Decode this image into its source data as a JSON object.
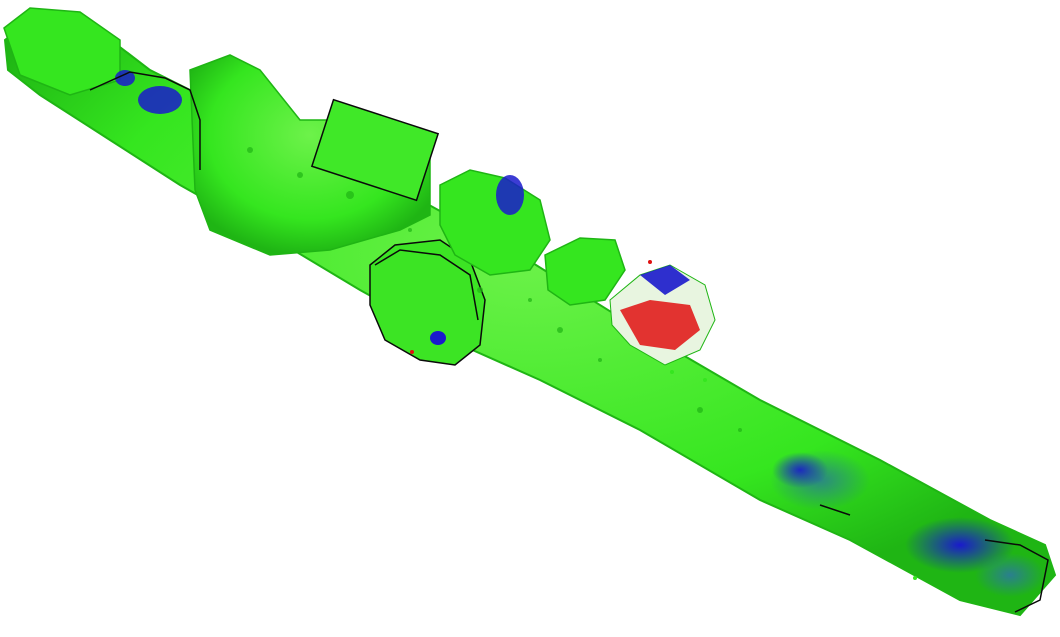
{
  "scene": {
    "background": "#ffffff",
    "colors": {
      "surface_green": "#35e61f",
      "surface_green_dark": "#1fb514",
      "surface_green_light": "#6df24a",
      "deviation_blue": "#1a1acc",
      "deviation_teal": "#2a7f8f",
      "deviation_red": "#e01010",
      "contour_line": "#0a0a0a"
    },
    "object_icon": "colored-point-cloud-pipe-model"
  }
}
